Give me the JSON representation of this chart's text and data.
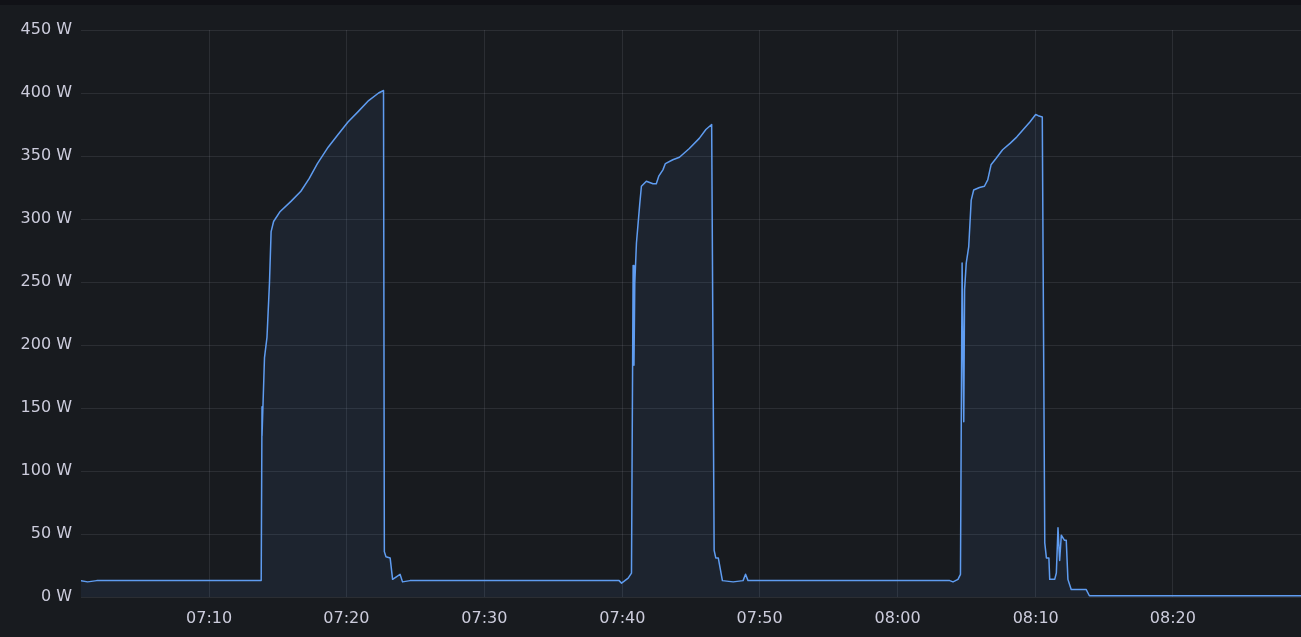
{
  "chart_data": {
    "type": "area",
    "color": "#5f9cf0",
    "x": [
      7.012,
      7.02,
      7.031,
      7.23,
      7.231,
      7.231,
      7.234,
      7.237,
      7.24,
      7.242,
      7.245,
      7.253,
      7.266,
      7.278,
      7.288,
      7.298,
      7.311,
      7.323,
      7.335,
      7.347,
      7.36,
      7.372,
      7.378,
      7.379,
      7.381,
      7.386,
      7.389,
      7.398,
      7.401,
      7.41,
      7.64,
      7.663,
      7.666,
      7.674,
      7.678,
      7.68,
      7.681,
      7.682,
      7.684,
      7.688,
      7.69,
      7.696,
      7.704,
      7.708,
      7.711,
      7.716,
      7.719,
      7.728,
      7.736,
      7.748,
      7.76,
      7.768,
      7.775,
      7.778,
      7.78,
      7.783,
      7.788,
      7.801,
      7.813,
      7.816,
      7.819,
      8.063,
      8.067,
      8.073,
      8.076,
      8.078,
      8.08,
      8.081,
      8.083,
      8.086,
      8.089,
      8.092,
      8.099,
      8.105,
      8.109,
      8.113,
      8.119,
      8.127,
      8.136,
      8.144,
      8.152,
      8.16,
      8.167,
      8.17,
      8.175,
      8.178,
      8.18,
      8.183,
      8.184,
      8.19,
      8.192,
      8.194,
      8.196,
      8.198,
      8.202,
      8.204,
      8.206,
      8.21,
      8.228,
      8.232,
      8.488
    ],
    "values": [
      13,
      12,
      13,
      13,
      151,
      128,
      190,
      206,
      249,
      290,
      298,
      306,
      314,
      322,
      332,
      344,
      357,
      367,
      377,
      385,
      394,
      400,
      402,
      36,
      32,
      31,
      14,
      18,
      12,
      13,
      13,
      13,
      11,
      15,
      19,
      263,
      184,
      249,
      281,
      312,
      326,
      330,
      328,
      328,
      334,
      339,
      344,
      347,
      349,
      356,
      364,
      371,
      375,
      37,
      31,
      31,
      13,
      12,
      13,
      18,
      13,
      13,
      12,
      14,
      18,
      265,
      139,
      244,
      265,
      278,
      315,
      323,
      325,
      326,
      331,
      343,
      348,
      355,
      360,
      365,
      371,
      377,
      383,
      382,
      381,
      43,
      31,
      31,
      14,
      14,
      19,
      55,
      29,
      49,
      45,
      45,
      14,
      6,
      6,
      1,
      1
    ],
    "xlim": [
      7.012,
      8.488
    ],
    "xticks": [
      {
        "value": 7.167,
        "label": "07:10"
      },
      {
        "value": 7.333,
        "label": "07:20"
      },
      {
        "value": 7.5,
        "label": "07:30"
      },
      {
        "value": 7.667,
        "label": "07:40"
      },
      {
        "value": 7.833,
        "label": "07:50"
      },
      {
        "value": 8,
        "label": "08:00"
      },
      {
        "value": 8.167,
        "label": "08:10"
      },
      {
        "value": 8.333,
        "label": "08:20"
      }
    ],
    "ylim": [
      0,
      450
    ],
    "yticks": [
      {
        "value": 0,
        "label": "0 W"
      },
      {
        "value": 50,
        "label": "50 W"
      },
      {
        "value": 100,
        "label": "100 W"
      },
      {
        "value": 150,
        "label": "150 W"
      },
      {
        "value": 200,
        "label": "200 W"
      },
      {
        "value": 250,
        "label": "250 W"
      },
      {
        "value": 300,
        "label": "300 W"
      },
      {
        "value": 350,
        "label": "350 W"
      },
      {
        "value": 400,
        "label": "400 W"
      },
      {
        "value": 450,
        "label": "450 W"
      }
    ],
    "grid": true
  }
}
